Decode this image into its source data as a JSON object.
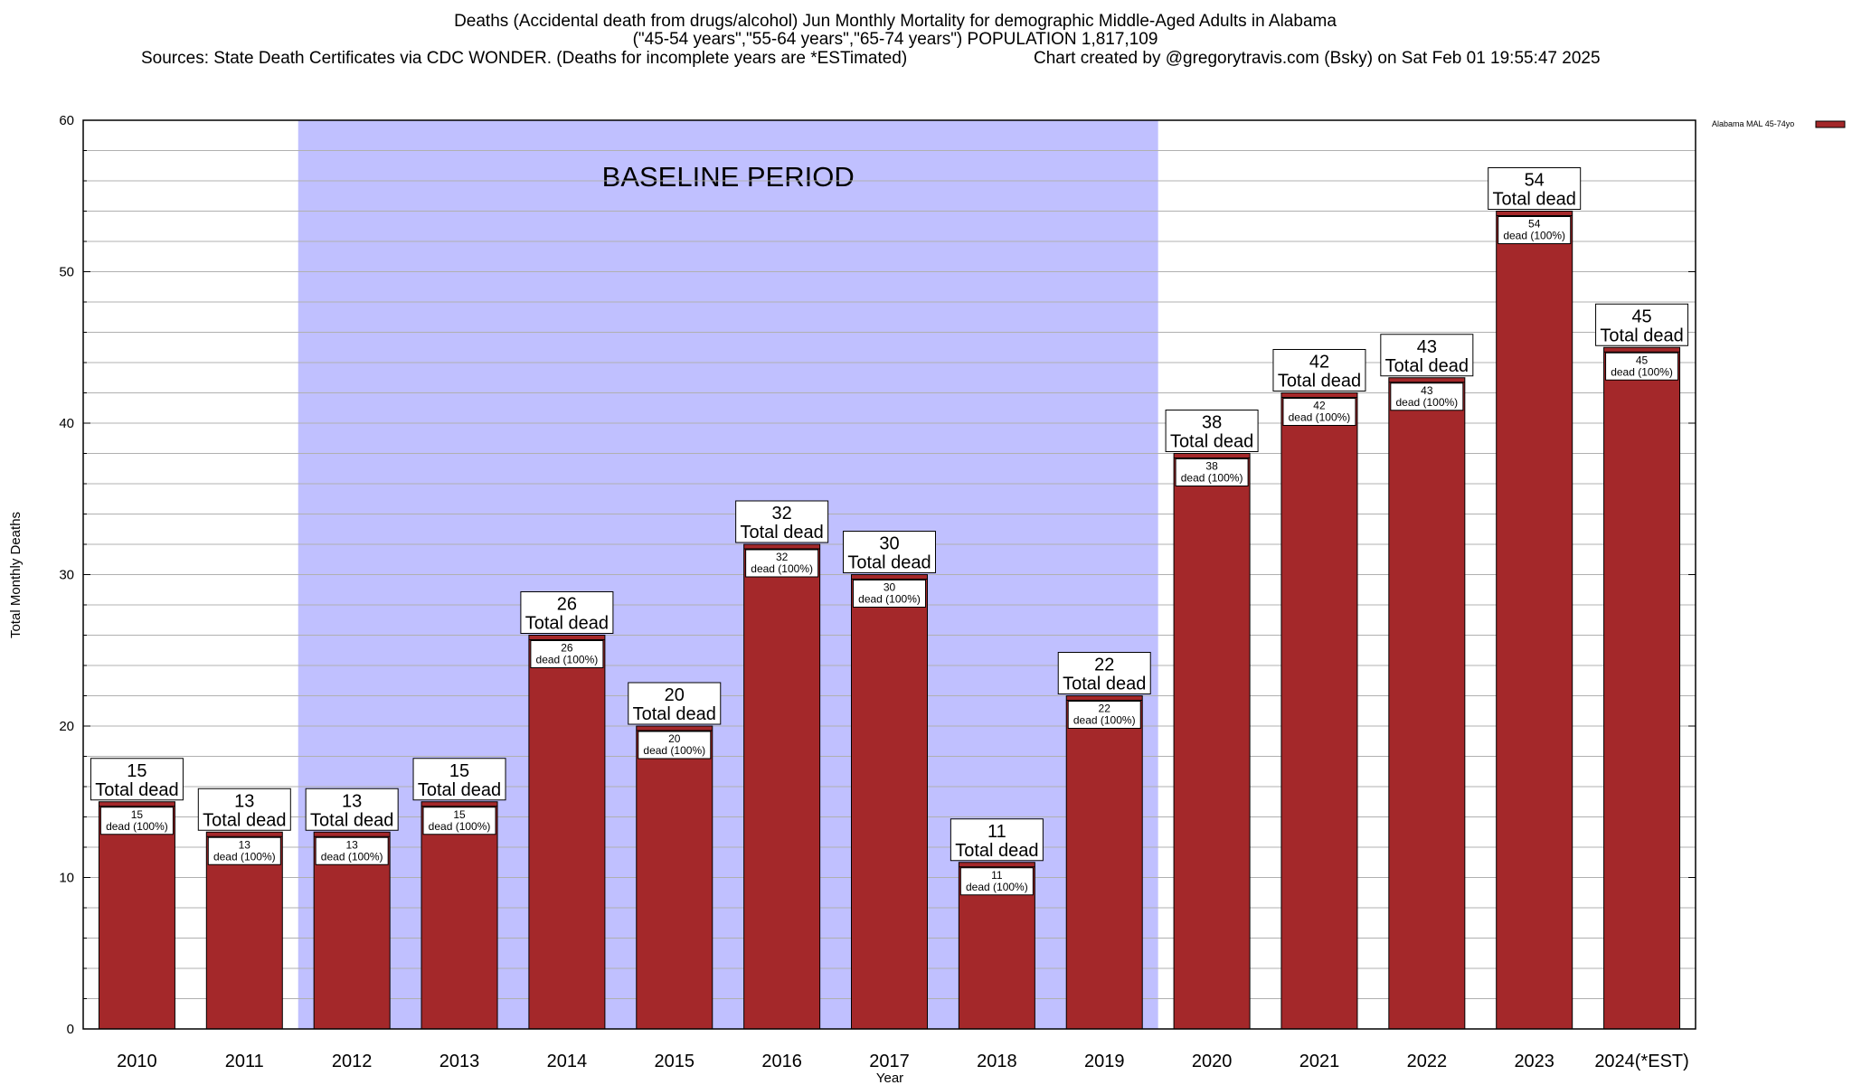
{
  "header": {
    "title_line1": "Deaths (Accidental death from drugs/alcohol) Jun Monthly Mortality for demographic Middle-Aged Adults in Alabama",
    "title_line2": "(\"45-54 years\",\"55-64 years\",\"65-74 years\") POPULATION 1,817,109",
    "sources": "Sources: State Death Certificates via CDC WONDER. (Deaths for incomplete years are *ESTimated)",
    "credit": "Chart created by @gregorytravis.com (Bsky) on Sat Feb 01 19:55:47 2025"
  },
  "chart_data": {
    "type": "bar",
    "categories": [
      "2010",
      "2011",
      "2012",
      "2013",
      "2014",
      "2015",
      "2016",
      "2017",
      "2018",
      "2019",
      "2020",
      "2021",
      "2022",
      "2023",
      "2024(*EST)"
    ],
    "series": [
      {
        "name": "Alabama MAL 45-74yo",
        "values": [
          15,
          13,
          13,
          15,
          26,
          20,
          32,
          30,
          11,
          22,
          38,
          42,
          43,
          54,
          45
        ],
        "color": "#a4282a"
      }
    ],
    "xlabel": "Year",
    "ylabel": "Total Monthly Deaths",
    "ylim": [
      0,
      60
    ],
    "yticks": [
      0,
      10,
      20,
      30,
      40,
      50,
      60
    ],
    "grid": true,
    "legend_position": "top-right",
    "baseline": {
      "label": "BASELINE PERIOD",
      "start_category": "2012",
      "end_category": "2019",
      "color": "#c0c0ff"
    },
    "top_label_suffix": "Total dead",
    "inner_label_suffix": "dead (100%)",
    "colors": {
      "bar": "#a4282a",
      "bar_top_stripe": "#a4282a",
      "baseline_fill": "#c0c0ff",
      "grid": "#b0b0b0"
    }
  }
}
